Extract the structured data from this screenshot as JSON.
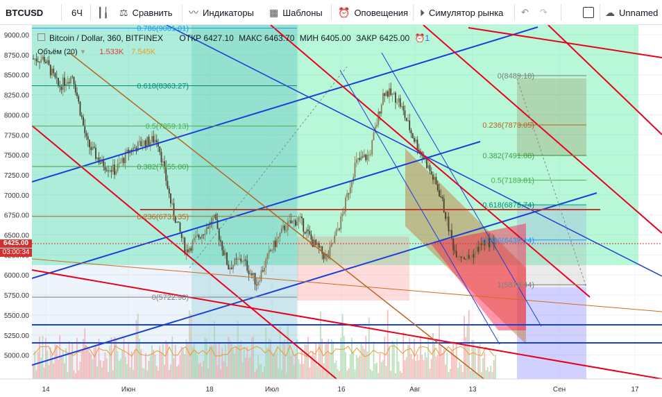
{
  "toolbar": {
    "symbol": "BTCUSD",
    "interval": "6Ч",
    "compare": "Сравнить",
    "indicators": "Индикаторы",
    "templates": "Шаблоны",
    "alerts": "Оповещения",
    "replay": "Симулятор рынка",
    "layout_name": "Unnamed"
  },
  "legend": {
    "title": "Bitcoin / Dollar, 360, BITFINEX",
    "open_label": "ОТКР",
    "open": "6427.10",
    "high_label": "МАКС",
    "high": "6463.70",
    "low_label": "МИН",
    "low": "6405.00",
    "close_label": "ЗАКР",
    "close": "6425.00",
    "alerts_count": "1",
    "volume_label": "Объём (20)",
    "volume_value": "1.533K",
    "volume_ma": "7.545K"
  },
  "price_labels": {
    "last_price": "6425.00",
    "countdown": "03:00:34"
  },
  "chart_data": {
    "type": "candlestick",
    "title": "Bitcoin / Dollar, 360, BITFINEX",
    "y_ticks": [
      "9000.00",
      "8750.00",
      "8500.00",
      "8250.00",
      "8000.00",
      "7750.00",
      "7500.00",
      "7250.00",
      "7000.00",
      "6750.00",
      "6500.00",
      "6250.00",
      "6000.00",
      "5750.00",
      "5500.00",
      "5250.00",
      "5000.00"
    ],
    "x_ticks": [
      "14",
      "Июн",
      "18",
      "Июл",
      "16",
      "Авг",
      "13",
      "Сен",
      "17"
    ],
    "ylim": [
      4775,
      9100
    ],
    "close_path": [
      [
        "2018-05-14",
        8700
      ],
      [
        "2018-05-17",
        8350
      ],
      [
        "2018-05-20",
        8500
      ],
      [
        "2018-05-23",
        7650
      ],
      [
        "2018-05-26",
        7400
      ],
      [
        "2018-05-29",
        7300
      ],
      [
        "2018-06-01",
        7550
      ],
      [
        "2018-06-04",
        7650
      ],
      [
        "2018-06-07",
        7700
      ],
      [
        "2018-06-10",
        6850
      ],
      [
        "2018-06-13",
        6300
      ],
      [
        "2018-06-16",
        6500
      ],
      [
        "2018-06-19",
        6700
      ],
      [
        "2018-06-22",
        6100
      ],
      [
        "2018-06-25",
        6200
      ],
      [
        "2018-06-28",
        5900
      ],
      [
        "2018-07-01",
        6300
      ],
      [
        "2018-07-04",
        6600
      ],
      [
        "2018-07-07",
        6700
      ],
      [
        "2018-07-10",
        6400
      ],
      [
        "2018-07-13",
        6200
      ],
      [
        "2018-07-16",
        6700
      ],
      [
        "2018-07-19",
        7400
      ],
      [
        "2018-07-22",
        7500
      ],
      [
        "2018-07-25",
        8300
      ],
      [
        "2018-07-28",
        8200
      ],
      [
        "2018-07-31",
        7750
      ],
      [
        "2018-08-03",
        7400
      ],
      [
        "2018-08-06",
        7000
      ],
      [
        "2018-08-09",
        6300
      ],
      [
        "2018-08-12",
        6200
      ],
      [
        "2018-08-15",
        6400
      ],
      [
        "2018-08-18",
        6425
      ]
    ],
    "fib_retracement_1": [
      {
        "level": "0.786",
        "price": "9081.01"
      },
      {
        "level": "0.618",
        "price": "8363.27"
      },
      {
        "level": "0.5",
        "price": "7859.13"
      },
      {
        "level": "0.382",
        "price": "7355.00"
      },
      {
        "level": "0.236",
        "price": "6731.35"
      },
      {
        "level": "0",
        "price": "5722.98"
      }
    ],
    "fib_retracement_2": [
      {
        "level": "0",
        "price": "8489.18"
      },
      {
        "level": "0.236",
        "price": "7873.05"
      },
      {
        "level": "0.382",
        "price": "7491.88"
      },
      {
        "level": "0.5",
        "price": "7183.81"
      },
      {
        "level": "0.618",
        "price": "6875.74"
      },
      {
        "level": "0.786",
        "price": "6437.14"
      },
      {
        "level": "1",
        "price": "5878.44"
      }
    ],
    "volume": {
      "label": "Объём (20)",
      "last": "1.533K",
      "ma": "7.545K"
    },
    "colors": {
      "up": "#8a7a55",
      "down": "#4a3e2b",
      "long_zone": "#00e676",
      "fib_blue": "#2196f3",
      "red_line": "#e8001c",
      "blue_line": "#1a3fd8",
      "last_price": "#d32f2f"
    }
  }
}
